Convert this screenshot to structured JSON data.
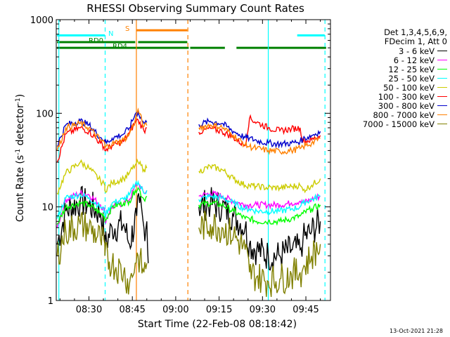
{
  "chart_data": {
    "type": "line",
    "title": "RHESSI Observing Summary Count Rates",
    "xlabel": "Start Time (22-Feb-08 08:18:42)",
    "ylabel": "Count Rate (s",
    "ylabel_sup1": "-1",
    "ylabel_mid": " detector",
    "ylabel_sup2": "-1",
    "ylabel_end": ")",
    "yscale": "log",
    "xlim": [
      18.7,
      113.5
    ],
    "ylim": [
      1,
      1000
    ],
    "x_ticks": [
      30,
      45,
      60,
      75,
      90,
      105
    ],
    "x_tick_labels": [
      "08:30",
      "08:45",
      "09:00",
      "09:15",
      "09:30",
      "09:45"
    ],
    "y_ticks": [
      1,
      10,
      100,
      1000
    ],
    "y_tick_labels": [
      "1",
      "10",
      "100",
      "1000"
    ],
    "legend_header": [
      "Det 1,3,4,5,6,9,",
      "FDecim 1, Att 0"
    ],
    "series": [
      {
        "name": "3 - 6 keV",
        "color": "#000000",
        "values": [
          [
            19,
            4
          ],
          [
            22,
            9
          ],
          [
            27,
            11.5
          ],
          [
            30,
            10.5
          ],
          [
            34,
            8.5
          ],
          [
            35.5,
            5
          ],
          [
            35.5,
            3.8
          ],
          [
            38,
            6
          ],
          [
            42,
            6.5
          ],
          [
            44,
            4
          ],
          [
            46.5,
            8
          ],
          [
            47.5,
            11
          ],
          [
            49,
            6
          ],
          [
            50,
            7
          ],
          [
            50.5,
            2.5
          ],
          [
            68,
            10
          ],
          [
            72,
            11
          ],
          [
            76,
            10
          ],
          [
            80,
            8
          ],
          [
            84,
            6
          ],
          [
            85.5,
            4
          ],
          [
            88,
            3.5
          ],
          [
            92,
            3
          ],
          [
            96,
            3
          ],
          [
            100,
            3.5
          ],
          [
            103,
            3.5
          ],
          [
            104,
            4.5
          ],
          [
            107,
            5.5
          ],
          [
            110,
            7
          ]
        ]
      },
      {
        "name": "6 - 12 keV",
        "color": "#ff00ff",
        "values": [
          [
            19,
            6
          ],
          [
            22,
            12
          ],
          [
            27,
            14
          ],
          [
            30,
            13.5
          ],
          [
            34,
            10.5
          ],
          [
            35.5,
            9
          ],
          [
            35.5,
            7
          ],
          [
            38,
            10
          ],
          [
            42,
            11
          ],
          [
            44,
            12
          ],
          [
            46,
            16.5
          ],
          [
            47,
            18
          ],
          [
            49,
            14
          ],
          [
            50,
            15
          ],
          [
            68,
            13
          ],
          [
            72,
            14
          ],
          [
            76,
            13
          ],
          [
            80,
            11.5
          ],
          [
            84,
            10.5
          ],
          [
            85.5,
            10.5
          ],
          [
            88,
            10.5
          ],
          [
            92,
            10.5
          ],
          [
            96,
            10.5
          ],
          [
            100,
            11
          ],
          [
            103,
            11.5
          ],
          [
            104,
            11
          ],
          [
            107,
            12
          ],
          [
            110,
            13
          ]
        ]
      },
      {
        "name": "12 - 25 keV",
        "color": "#00ff00",
        "values": [
          [
            19,
            6.5
          ],
          [
            22,
            10
          ],
          [
            27,
            11
          ],
          [
            30,
            10.5
          ],
          [
            34,
            8.5
          ],
          [
            35.5,
            8
          ],
          [
            35.5,
            7
          ],
          [
            38,
            10
          ],
          [
            42,
            11
          ],
          [
            44,
            11.5
          ],
          [
            46,
            15
          ],
          [
            47,
            16
          ],
          [
            49,
            12
          ],
          [
            50,
            13
          ],
          [
            68,
            10.5
          ],
          [
            72,
            11
          ],
          [
            76,
            10.5
          ],
          [
            80,
            9
          ],
          [
            84,
            7.5
          ],
          [
            85.5,
            7.5
          ],
          [
            88,
            7
          ],
          [
            92,
            7
          ],
          [
            96,
            7
          ],
          [
            100,
            7.5
          ],
          [
            103,
            8
          ],
          [
            104,
            8.5
          ],
          [
            107,
            9.5
          ],
          [
            110,
            10.5
          ]
        ]
      },
      {
        "name": "25 - 50 keV",
        "color": "#00ffff",
        "values": [
          [
            19,
            7.5
          ],
          [
            22,
            12.5
          ],
          [
            27,
            13.5
          ],
          [
            30,
            12.5
          ],
          [
            34,
            10
          ],
          [
            35.5,
            9
          ],
          [
            35.5,
            8
          ],
          [
            38,
            11
          ],
          [
            42,
            12
          ],
          [
            44,
            13.5
          ],
          [
            46,
            17.5
          ],
          [
            47,
            18.5
          ],
          [
            49,
            14
          ],
          [
            50,
            15
          ],
          [
            68,
            12
          ],
          [
            72,
            13
          ],
          [
            76,
            12.5
          ],
          [
            80,
            11
          ],
          [
            84,
            9.5
          ],
          [
            85.5,
            9.5
          ],
          [
            88,
            9
          ],
          [
            92,
            9
          ],
          [
            96,
            9
          ],
          [
            100,
            9.5
          ],
          [
            103,
            10
          ],
          [
            104,
            11
          ],
          [
            107,
            12
          ],
          [
            110,
            13
          ]
        ]
      },
      {
        "name": "50 - 100 keV",
        "color": "#cccc00",
        "values": [
          [
            19,
            14
          ],
          [
            22,
            23
          ],
          [
            27,
            30
          ],
          [
            30,
            26
          ],
          [
            34,
            19
          ],
          [
            35.5,
            17
          ],
          [
            35.5,
            15
          ],
          [
            38,
            18
          ],
          [
            42,
            20
          ],
          [
            44,
            23
          ],
          [
            46,
            28
          ],
          [
            47,
            30
          ],
          [
            49,
            25
          ],
          [
            50,
            26
          ],
          [
            68,
            24
          ],
          [
            72,
            27
          ],
          [
            76,
            25
          ],
          [
            80,
            20
          ],
          [
            84,
            17
          ],
          [
            85.5,
            17
          ],
          [
            88,
            16.5
          ],
          [
            92,
            16
          ],
          [
            96,
            16
          ],
          [
            100,
            16.5
          ],
          [
            103,
            17
          ],
          [
            104,
            15
          ],
          [
            107,
            17
          ],
          [
            110,
            20
          ]
        ]
      },
      {
        "name": "100 - 300 keV",
        "color": "#ff0000",
        "values": [
          [
            19,
            30
          ],
          [
            22,
            60
          ],
          [
            27,
            70
          ],
          [
            30,
            64
          ],
          [
            34,
            48
          ],
          [
            35.5,
            43
          ],
          [
            35.5,
            40
          ],
          [
            38,
            45
          ],
          [
            42,
            50
          ],
          [
            44,
            62
          ],
          [
            46,
            80
          ],
          [
            47,
            85
          ],
          [
            49,
            65
          ],
          [
            50,
            70
          ],
          [
            68,
            63
          ],
          [
            72,
            69
          ],
          [
            76,
            64
          ],
          [
            80,
            55
          ],
          [
            84,
            45
          ],
          [
            85.5,
            88
          ],
          [
            88,
            80
          ],
          [
            92,
            70
          ],
          [
            96,
            65
          ],
          [
            100,
            68
          ],
          [
            103,
            70
          ],
          [
            104,
            50
          ],
          [
            107,
            52
          ],
          [
            110,
            58
          ]
        ]
      },
      {
        "name": "300 - 800 keV",
        "color": "#0000cc",
        "values": [
          [
            19,
            45
          ],
          [
            22,
            75
          ],
          [
            27,
            83
          ],
          [
            30,
            75
          ],
          [
            34,
            55
          ],
          [
            35.5,
            52
          ],
          [
            35.5,
            47
          ],
          [
            38,
            54
          ],
          [
            42,
            60
          ],
          [
            44,
            70
          ],
          [
            46,
            98
          ],
          [
            47,
            102
          ],
          [
            49,
            78
          ],
          [
            50,
            80
          ],
          [
            68,
            76
          ],
          [
            72,
            82
          ],
          [
            76,
            78
          ],
          [
            80,
            64
          ],
          [
            84,
            55
          ],
          [
            85.5,
            54
          ],
          [
            88,
            51
          ],
          [
            92,
            48
          ],
          [
            96,
            47
          ],
          [
            100,
            48
          ],
          [
            103,
            50
          ],
          [
            104,
            53
          ],
          [
            107,
            58
          ],
          [
            110,
            64
          ]
        ]
      },
      {
        "name": "800 - 7000 keV",
        "color": "#ff8000",
        "values": [
          [
            19,
            40
          ],
          [
            22,
            70
          ],
          [
            27,
            78
          ],
          [
            30,
            70
          ],
          [
            34,
            52
          ],
          [
            35.5,
            48
          ],
          [
            35.5,
            43
          ],
          [
            38,
            47
          ],
          [
            42,
            52
          ],
          [
            44,
            60
          ],
          [
            46,
            85
          ],
          [
            47,
            110
          ],
          [
            49,
            72
          ],
          [
            50,
            74
          ],
          [
            68,
            70
          ],
          [
            72,
            75
          ],
          [
            76,
            71
          ],
          [
            80,
            58
          ],
          [
            84,
            46
          ],
          [
            85.5,
            44
          ],
          [
            88,
            42
          ],
          [
            92,
            40
          ],
          [
            96,
            39
          ],
          [
            100,
            40
          ],
          [
            103,
            42
          ],
          [
            104,
            44
          ],
          [
            107,
            48
          ],
          [
            110,
            54
          ]
        ]
      },
      {
        "name": "7000 - 15000 keV",
        "color": "#808000",
        "values": [
          [
            19,
            3
          ],
          [
            22,
            5.5
          ],
          [
            27,
            6.5
          ],
          [
            30,
            6
          ],
          [
            34,
            4.5
          ],
          [
            35.5,
            4
          ],
          [
            35.5,
            3
          ],
          [
            38,
            2.5
          ],
          [
            42,
            2
          ],
          [
            44,
            1.5
          ],
          [
            46,
            2.5
          ],
          [
            47,
            3
          ],
          [
            49,
            2
          ],
          [
            50,
            2.5
          ],
          [
            68,
            6
          ],
          [
            72,
            6.5
          ],
          [
            76,
            6
          ],
          [
            80,
            5
          ],
          [
            84,
            3.5
          ],
          [
            85.5,
            2
          ],
          [
            88,
            1.8
          ],
          [
            92,
            1.6
          ],
          [
            96,
            1.7
          ],
          [
            100,
            1.9
          ],
          [
            103,
            2
          ],
          [
            104,
            2.2
          ],
          [
            107,
            3
          ],
          [
            110,
            4
          ]
        ]
      }
    ],
    "flags": [
      {
        "label": "N",
        "color": "#00ffff",
        "y": 680,
        "spans": [
          [
            19,
            35.5
          ],
          [
            102,
            111.5
          ]
        ]
      },
      {
        "label": "S",
        "color": "#ff8000",
        "y": 770,
        "spans": [
          [
            46.5,
            64
          ]
        ]
      },
      {
        "label": "RD0",
        "color": "#008000",
        "y": 575,
        "spans": [
          [
            19,
            46
          ],
          [
            47,
            64
          ]
        ]
      },
      {
        "label": "RD4",
        "color": "#008000",
        "y": 500,
        "spans": [
          [
            19,
            64.5
          ],
          [
            65,
            77
          ],
          [
            81,
            109
          ],
          [
            109,
            112
          ]
        ]
      }
    ],
    "vlines": [
      {
        "x": 19.6,
        "color": "#00ffff",
        "dash": false
      },
      {
        "x": 35.6,
        "color": "#00ffff",
        "dash": true
      },
      {
        "x": 46.4,
        "color": "#ff8000",
        "dash": false
      },
      {
        "x": 64.2,
        "color": "#ff8000",
        "dash": true
      },
      {
        "x": 92.0,
        "color": "#00ffff",
        "dash": false
      },
      {
        "x": 111.6,
        "color": "#00ffff",
        "dash": true
      }
    ]
  },
  "timestamp": "13-Oct-2021 21:28"
}
